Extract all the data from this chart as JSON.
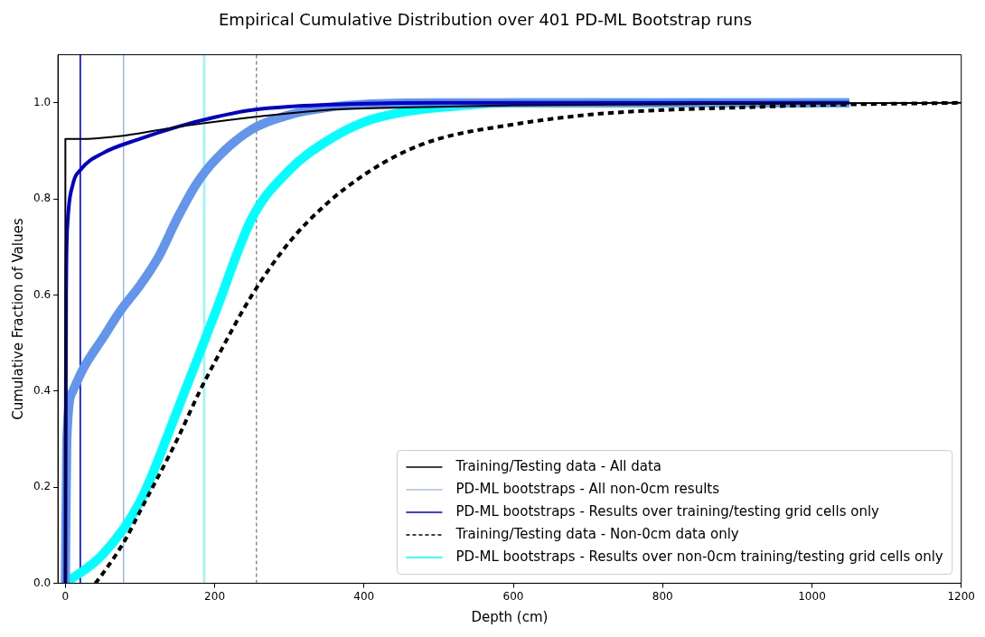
{
  "chart_data": {
    "type": "line",
    "title": "Empirical Cumulative Distribution over 401 PD-ML Bootstrap runs",
    "xlabel": "Depth (cm)",
    "ylabel": "Cumulative Fraction of Values",
    "xlim": [
      -10,
      1200
    ],
    "xticks": [
      0,
      200,
      400,
      600,
      800,
      1000,
      1200
    ],
    "ylim": [
      0,
      1.1
    ],
    "yticks": [
      {
        "value": 0,
        "label": "0.0"
      },
      0.2,
      0.4,
      0.6,
      0.8,
      {
        "value": 1,
        "label": "1.0"
      }
    ],
    "grid": false,
    "legend": "bottom right",
    "marker": "none",
    "series": [
      {
        "name": "Training/Testing data - All data",
        "color": "#000000",
        "line_style": "solid",
        "x": [
          0,
          0,
          20,
          40,
          80,
          150,
          250,
          350,
          450,
          600,
          800,
          1000,
          1200
        ],
        "values": [
          0,
          0.925,
          0.925,
          0.926,
          0.932,
          0.95,
          0.97,
          0.985,
          0.99,
          0.995,
          0.997,
          0.999,
          1.0
        ]
      },
      {
        "name": "PD-ML bootstraps - All non-0cm results",
        "color": "#6495ed",
        "line_style": "solid",
        "x": [
          0,
          2,
          10,
          25,
          50,
          75,
          100,
          125,
          150,
          175,
          200,
          250,
          300,
          350,
          400,
          500,
          1050
        ],
        "values": [
          0,
          0.3,
          0.4,
          0.45,
          0.51,
          0.57,
          0.62,
          0.68,
          0.76,
          0.83,
          0.88,
          0.945,
          0.975,
          0.99,
          0.997,
          1.0,
          1.0
        ]
      },
      {
        "name": "PD-ML bootstraps - Results over training/testing grid cells only",
        "color": "#0000cc",
        "line_style": "solid",
        "x": [
          0,
          1,
          3,
          10,
          20,
          50,
          100,
          150,
          200,
          250,
          300,
          400,
          500,
          1050
        ],
        "values": [
          0,
          0.6,
          0.75,
          0.83,
          0.86,
          0.895,
          0.925,
          0.95,
          0.97,
          0.985,
          0.992,
          0.998,
          1.0,
          1.0
        ]
      },
      {
        "name": "Training/Testing data - Non-0cm data only",
        "color": "#000000",
        "line_style": "dashed",
        "x": [
          40,
          50,
          80,
          100,
          150,
          180,
          200,
          250,
          300,
          350,
          400,
          450,
          500,
          600,
          700,
          800,
          900,
          1000,
          1200
        ],
        "values": [
          0,
          0.02,
          0.09,
          0.15,
          0.3,
          0.4,
          0.46,
          0.6,
          0.71,
          0.79,
          0.85,
          0.895,
          0.925,
          0.955,
          0.975,
          0.985,
          0.99,
          0.995,
          1.0
        ]
      },
      {
        "name": "PD-ML bootstraps - Results over non-0cm training/testing grid cells only",
        "color": "#00ffff",
        "line_style": "solid",
        "x": [
          0,
          50,
          100,
          150,
          200,
          250,
          300,
          350,
          400,
          450,
          500,
          600,
          1050
        ],
        "values": [
          0,
          0.06,
          0.17,
          0.36,
          0.56,
          0.76,
          0.86,
          0.92,
          0.96,
          0.98,
          0.99,
          1.0,
          1.0
        ]
      }
    ],
    "ref_lines": [
      {
        "axis": "x",
        "value": 20,
        "color": "#0000cc",
        "line_style": "solid"
      },
      {
        "axis": "x",
        "value": 78,
        "color": "#6495ed",
        "line_style": "solid"
      },
      {
        "axis": "x",
        "value": 186,
        "color": "#00ffff",
        "line_style": "solid"
      },
      {
        "axis": "x",
        "value": 256,
        "color": "#555555",
        "line_style": "dashed"
      }
    ]
  }
}
